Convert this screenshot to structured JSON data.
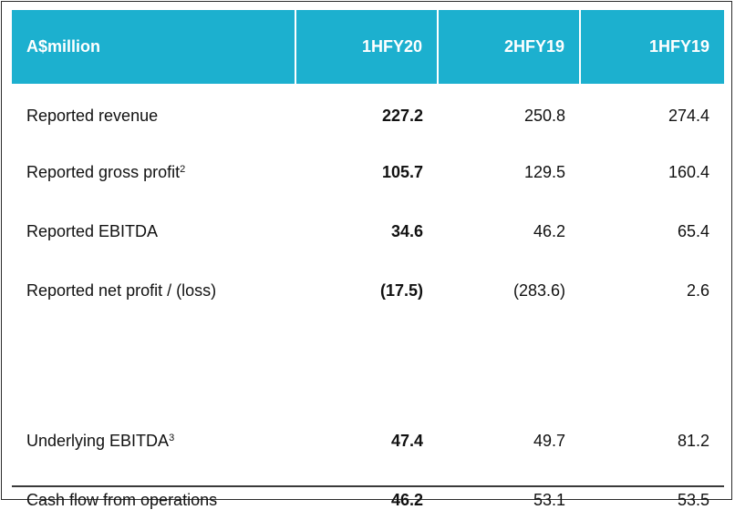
{
  "header": {
    "label": "A$million",
    "columns": [
      "1HFY20",
      "2HFY19",
      "1HFY19"
    ]
  },
  "rows": [
    {
      "label": "Reported revenue",
      "sup": "",
      "values": [
        "227.2",
        "250.8",
        "274.4"
      ]
    },
    {
      "label": "Reported gross profit",
      "sup": "2",
      "values": [
        "105.7",
        "129.5",
        "160.4"
      ]
    },
    {
      "label": "Reported EBITDA",
      "sup": "",
      "values": [
        "34.6",
        "46.2",
        "65.4"
      ]
    },
    {
      "label": "Reported net profit / (loss)",
      "sup": "",
      "values": [
        "(17.5)",
        "(283.6)",
        "2.6"
      ]
    },
    {
      "label": "Underlying EBITDA",
      "sup": "3",
      "values": [
        "47.4",
        "49.7",
        "81.2"
      ]
    },
    {
      "label": "Cash flow from operations",
      "sup": "",
      "values": [
        "46.2",
        "53.1",
        "53.5"
      ]
    }
  ],
  "colors": {
    "header_bg": "#1cb0cf",
    "header_text": "#ffffff"
  }
}
